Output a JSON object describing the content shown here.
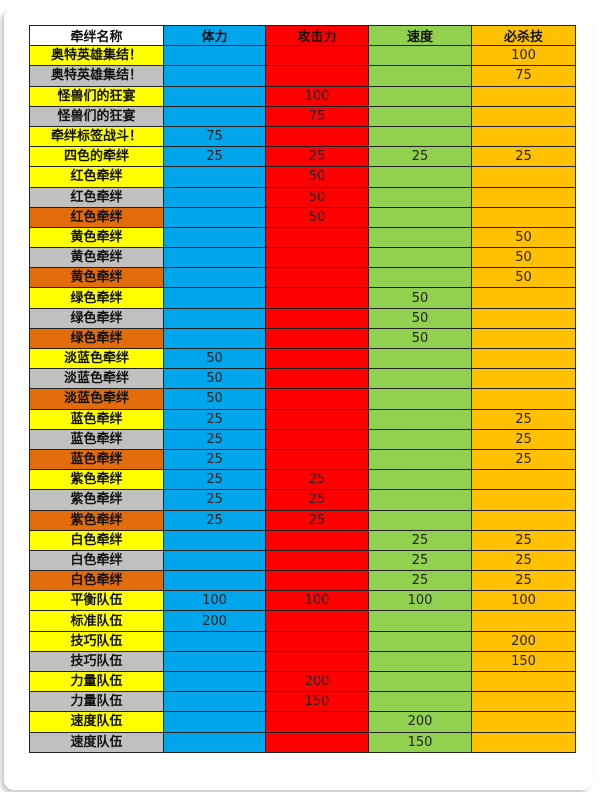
{
  "colors": {
    "header_name": "#ffffff",
    "hp": "#00a6ec",
    "atk": "#ff0000",
    "spd": "#92d050",
    "sp": "#ffc000",
    "yellow": "#ffff00",
    "gray": "#c0c0c0",
    "orange": "#e36c0a"
  },
  "headers": [
    "牵绊名称",
    "体力",
    "攻击力",
    "速度",
    "必杀技"
  ],
  "rows": [
    {
      "name": "奥特英雄集结！",
      "tier": "yellow",
      "hp": "",
      "atk": "",
      "spd": "",
      "sp": "100"
    },
    {
      "name": "奥特英雄集结！",
      "tier": "gray",
      "hp": "",
      "atk": "",
      "spd": "",
      "sp": "75"
    },
    {
      "name": "怪兽们的狂宴",
      "tier": "yellow",
      "hp": "",
      "atk": "100",
      "spd": "",
      "sp": ""
    },
    {
      "name": "怪兽们的狂宴",
      "tier": "gray",
      "hp": "",
      "atk": "75",
      "spd": "",
      "sp": ""
    },
    {
      "name": "牵绊标签战斗！",
      "tier": "yellow",
      "hp": "75",
      "atk": "",
      "spd": "",
      "sp": ""
    },
    {
      "name": "四色的牵绊",
      "tier": "yellow",
      "hp": "25",
      "atk": "25",
      "spd": "25",
      "sp": "25"
    },
    {
      "name": "红色牵绊",
      "tier": "yellow",
      "hp": "",
      "atk": "50",
      "spd": "",
      "sp": ""
    },
    {
      "name": "红色牵绊",
      "tier": "gray",
      "hp": "",
      "atk": "50",
      "spd": "",
      "sp": ""
    },
    {
      "name": "红色牵绊",
      "tier": "orange",
      "hp": "",
      "atk": "50",
      "spd": "",
      "sp": ""
    },
    {
      "name": "黄色牵绊",
      "tier": "yellow",
      "hp": "",
      "atk": "",
      "spd": "",
      "sp": "50"
    },
    {
      "name": "黄色牵绊",
      "tier": "gray",
      "hp": "",
      "atk": "",
      "spd": "",
      "sp": "50"
    },
    {
      "name": "黄色牵绊",
      "tier": "orange",
      "hp": "",
      "atk": "",
      "spd": "",
      "sp": "50"
    },
    {
      "name": "绿色牵绊",
      "tier": "yellow",
      "hp": "",
      "atk": "",
      "spd": "50",
      "sp": ""
    },
    {
      "name": "绿色牵绊",
      "tier": "gray",
      "hp": "",
      "atk": "",
      "spd": "50",
      "sp": ""
    },
    {
      "name": "绿色牵绊",
      "tier": "orange",
      "hp": "",
      "atk": "",
      "spd": "50",
      "sp": ""
    },
    {
      "name": "淡蓝色牵绊",
      "tier": "yellow",
      "hp": "50",
      "atk": "",
      "spd": "",
      "sp": ""
    },
    {
      "name": "淡蓝色牵绊",
      "tier": "gray",
      "hp": "50",
      "atk": "",
      "spd": "",
      "sp": ""
    },
    {
      "name": "淡蓝色牵绊",
      "tier": "orange",
      "hp": "50",
      "atk": "",
      "spd": "",
      "sp": ""
    },
    {
      "name": "蓝色牵绊",
      "tier": "yellow",
      "hp": "25",
      "atk": "",
      "spd": "",
      "sp": "25"
    },
    {
      "name": "蓝色牵绊",
      "tier": "gray",
      "hp": "25",
      "atk": "",
      "spd": "",
      "sp": "25"
    },
    {
      "name": "蓝色牵绊",
      "tier": "orange",
      "hp": "25",
      "atk": "",
      "spd": "",
      "sp": "25"
    },
    {
      "name": "紫色牵绊",
      "tier": "yellow",
      "hp": "25",
      "atk": "25",
      "spd": "",
      "sp": ""
    },
    {
      "name": "紫色牵绊",
      "tier": "gray",
      "hp": "25",
      "atk": "25",
      "spd": "",
      "sp": ""
    },
    {
      "name": "紫色牵绊",
      "tier": "orange",
      "hp": "25",
      "atk": "25",
      "spd": "",
      "sp": ""
    },
    {
      "name": "白色牵绊",
      "tier": "yellow",
      "hp": "",
      "atk": "",
      "spd": "25",
      "sp": "25"
    },
    {
      "name": "白色牵绊",
      "tier": "gray",
      "hp": "",
      "atk": "",
      "spd": "25",
      "sp": "25"
    },
    {
      "name": "白色牵绊",
      "tier": "orange",
      "hp": "",
      "atk": "",
      "spd": "25",
      "sp": "25"
    },
    {
      "name": "平衡队伍",
      "tier": "yellow",
      "hp": "100",
      "atk": "100",
      "spd": "100",
      "sp": "100"
    },
    {
      "name": "标准队伍",
      "tier": "yellow",
      "hp": "200",
      "atk": "",
      "spd": "",
      "sp": ""
    },
    {
      "name": "技巧队伍",
      "tier": "yellow",
      "hp": "",
      "atk": "",
      "spd": "",
      "sp": "200"
    },
    {
      "name": "技巧队伍",
      "tier": "gray",
      "hp": "",
      "atk": "",
      "spd": "",
      "sp": "150"
    },
    {
      "name": "力量队伍",
      "tier": "yellow",
      "hp": "",
      "atk": "200",
      "spd": "",
      "sp": ""
    },
    {
      "name": "力量队伍",
      "tier": "gray",
      "hp": "",
      "atk": "150",
      "spd": "",
      "sp": ""
    },
    {
      "name": "速度队伍",
      "tier": "yellow",
      "hp": "",
      "atk": "",
      "spd": "200",
      "sp": ""
    },
    {
      "name": "速度队伍",
      "tier": "gray",
      "hp": "",
      "atk": "",
      "spd": "150",
      "sp": ""
    }
  ]
}
